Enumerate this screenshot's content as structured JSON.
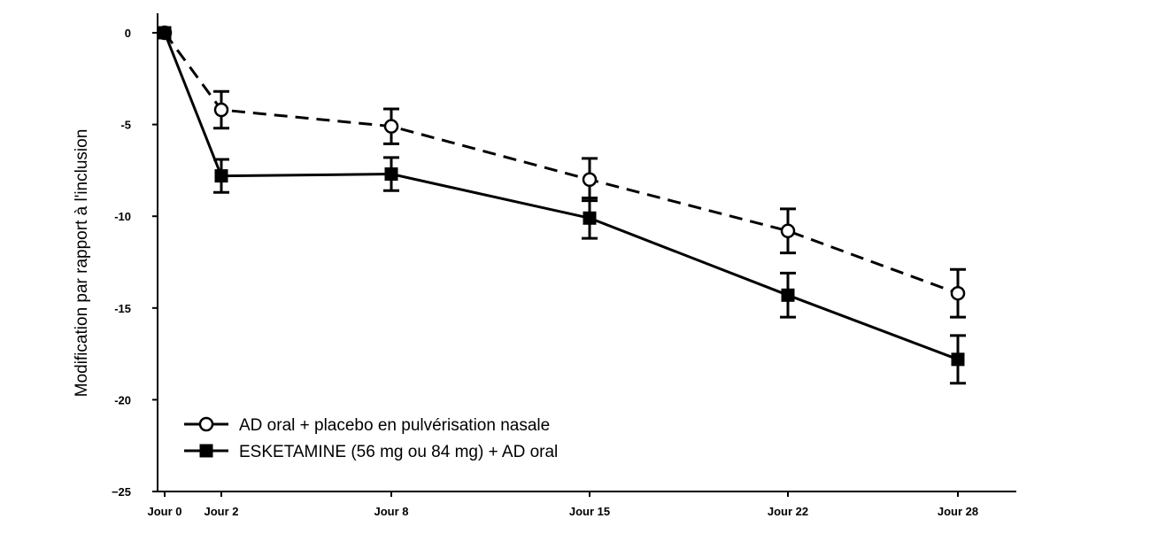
{
  "chart_data": {
    "type": "line",
    "title": "",
    "xlabel": "",
    "ylabel": "Modification par rapport à l'inclusion",
    "x": [
      0,
      2,
      8,
      15,
      22,
      28
    ],
    "x_tick_labels": [
      "Jour 0",
      "Jour 2",
      "Jour 8",
      "Jour 15",
      "Jour 22",
      "Jour 28"
    ],
    "xlim": [
      -0.4,
      30
    ],
    "ylim": [
      -25,
      1
    ],
    "y_ticks": [
      0,
      -5,
      -10,
      -15,
      -20,
      -25
    ],
    "y_tick_labels": [
      "0",
      "-5",
      "-10",
      "-15",
      "-20",
      "−25"
    ],
    "grid": false,
    "legend_position": "bottom-left",
    "series": [
      {
        "name": "AD oral + placebo en pulvérisation nasale",
        "line_style": "dashed",
        "marker": "open-circle",
        "color": "#000000",
        "values": [
          0,
          -4.2,
          -5.1,
          -8.0,
          -10.8,
          -14.2
        ],
        "error": [
          0,
          1.0,
          0.95,
          1.15,
          1.2,
          1.3
        ]
      },
      {
        "name": "ESKETAMINE (56 mg ou 84 mg) + AD oral",
        "line_style": "solid",
        "marker": "filled-square",
        "color": "#000000",
        "values": [
          0,
          -7.8,
          -7.7,
          -10.1,
          -14.3,
          -17.8
        ],
        "error": [
          0,
          0.9,
          0.9,
          1.1,
          1.2,
          1.3
        ]
      }
    ]
  }
}
